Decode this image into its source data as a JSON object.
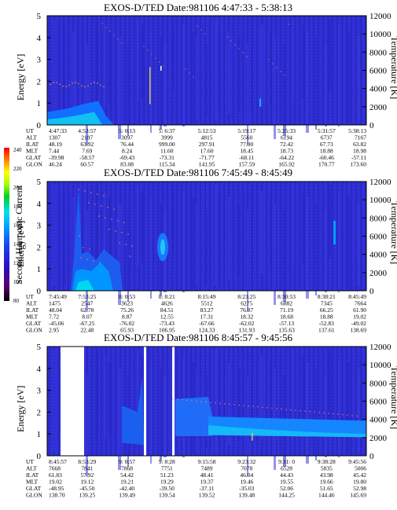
{
  "colorbar": {
    "label": "Second Harmonic Current",
    "ticks": [
      "240",
      "220",
      "200",
      "180",
      "160",
      "140",
      "120",
      "100",
      "80"
    ]
  },
  "chart_data": [
    {
      "type": "heatmap",
      "title": "EXOS-D/TED   Date:981106  4:47:33 - 5:38:13",
      "ylabel": "Energy [eV]",
      "y2label": "Temperature [K]",
      "ylim": [
        0,
        5
      ],
      "y2lim": [
        0,
        12000
      ],
      "yticks": [
        "0",
        "1",
        "2",
        "3",
        "4",
        "5"
      ],
      "y2ticks": [
        "0",
        "2000",
        "4000",
        "6000",
        "8000",
        "10000",
        "12000"
      ],
      "rows": [
        {
          "label": "UT",
          "values": [
            "4:47:33",
            "4:53:57",
            "5: 0:13",
            "5: 6:37",
            "5:12:53",
            "5:19:17",
            "5:25:33",
            "5:31:57",
            "5:38:13"
          ]
        },
        {
          "label": "ALT",
          "values": [
            "1307",
            "2187",
            "3097",
            "3999",
            "4815",
            "5560",
            "6194",
            "6737",
            "7167"
          ]
        },
        {
          "label": "ILAT",
          "values": [
            "48.19",
            "63.92",
            "76.44",
            "999.00",
            "297.91",
            "77.90",
            "72.42",
            "67.73",
            "63.82"
          ]
        },
        {
          "label": "MLT",
          "values": [
            "7.44",
            "7.69",
            "8.24",
            "11.60",
            "17.60",
            "18.45",
            "18.73",
            "18.88",
            "18.98"
          ]
        },
        {
          "label": "GLAT",
          "values": [
            "-39.98",
            "-58.57",
            "-69.43",
            "-73.31",
            "-71.77",
            "-68.11",
            "-64.22",
            "-60.46",
            "-57.11"
          ]
        },
        {
          "label": "GLON",
          "values": [
            "46.24",
            "60.57",
            "83.08",
            "115.34",
            "141.95",
            "157.59",
            "165.92",
            "170.77",
            "173.60"
          ]
        }
      ]
    },
    {
      "type": "heatmap",
      "title": "EXOS-D/TED   Date:981106  7:45:49 - 8:45:49",
      "ylabel": "Energy [eV]",
      "y2label": "Temperature [K]",
      "ylim": [
        0,
        5
      ],
      "y2lim": [
        0,
        12000
      ],
      "yticks": [
        "0",
        "1",
        "2",
        "3",
        "4",
        "5"
      ],
      "y2ticks": [
        "0",
        "2000",
        "4000",
        "6000",
        "8000",
        "10000",
        "12000"
      ],
      "rows": [
        {
          "label": "UT",
          "values": [
            "7:45:49",
            "7:53:25",
            "8: 0:53",
            "8: 8:21",
            "8:15:49",
            "8:23:25",
            "8:30:53",
            "8:38:21",
            "8:45:49"
          ]
        },
        {
          "label": "ALT",
          "values": [
            "1475",
            "2547",
            "3623",
            "4626",
            "5512",
            "6275",
            "6882",
            "7345",
            "7664"
          ]
        },
        {
          "label": "ILAT",
          "values": [
            "48.04",
            "62.78",
            "75.26",
            "84.51",
            "83.27",
            "76.87",
            "71.19",
            "66.25",
            "61.90"
          ]
        },
        {
          "label": "MLT",
          "values": [
            "7.72",
            "8.07",
            "8.87",
            "12.55",
            "17.31",
            "18.32",
            "18.68",
            "18.88",
            "19.02"
          ]
        },
        {
          "label": "GLAT",
          "values": [
            "-45.06",
            "-67.25",
            "-76.02",
            "-73.43",
            "-67.66",
            "-62.02",
            "-57.13",
            "-52.83",
            "-49.02"
          ]
        },
        {
          "label": "GLON",
          "values": [
            "2.95",
            "22.48",
            "65.93",
            "106.95",
            "124.33",
            "131.93",
            "135.63",
            "137.61",
            "138.69"
          ]
        }
      ]
    },
    {
      "type": "heatmap",
      "title": "EXOS-D/TED   Date:981106  8:45:57 - 9:45:56",
      "ylabel": "Energy [eV]",
      "y2label": "Temperature [K]",
      "ylim": [
        0,
        5
      ],
      "y2lim": [
        0,
        12000
      ],
      "yticks": [
        "0",
        "1",
        "2",
        "3",
        "4",
        "5"
      ],
      "y2ticks": [
        "0",
        "2000",
        "4000",
        "6000",
        "8000",
        "10000",
        "12000"
      ],
      "rows": [
        {
          "label": "UT",
          "values": [
            "8:45:57",
            "8:53:29",
            "9: 0:57",
            "9: 8:28",
            "9:15:58",
            "9:23:32",
            "9:31: 0",
            "9:38:28",
            "9:45:56"
          ]
        },
        {
          "label": "ALT",
          "values": [
            "7668",
            "7841",
            "7868",
            "7751",
            "7489",
            "7078",
            "6528",
            "5835",
            "5006"
          ]
        },
        {
          "label": "ILAT",
          "values": [
            "61.83",
            "57.92",
            "54.42",
            "51.23",
            "48.41",
            "46.04",
            "44.43",
            "43.98",
            "45.42"
          ]
        },
        {
          "label": "MLT",
          "values": [
            "19.02",
            "19.12",
            "19.21",
            "19.29",
            "19.37",
            "19.46",
            "19.55",
            "19.66",
            "19.80"
          ]
        },
        {
          "label": "GLAT",
          "values": [
            "-48.95",
            "-45.50",
            "-42.40",
            "-39.50",
            "-37.11",
            "-35.03",
            "52.06",
            "51.65",
            "52.98"
          ]
        },
        {
          "label": "GLON",
          "values": [
            "138.70",
            "139.25",
            "139.49",
            "139.54",
            "139.52",
            "139.48",
            "144.25",
            "144.46",
            "145.69"
          ]
        }
      ]
    }
  ]
}
